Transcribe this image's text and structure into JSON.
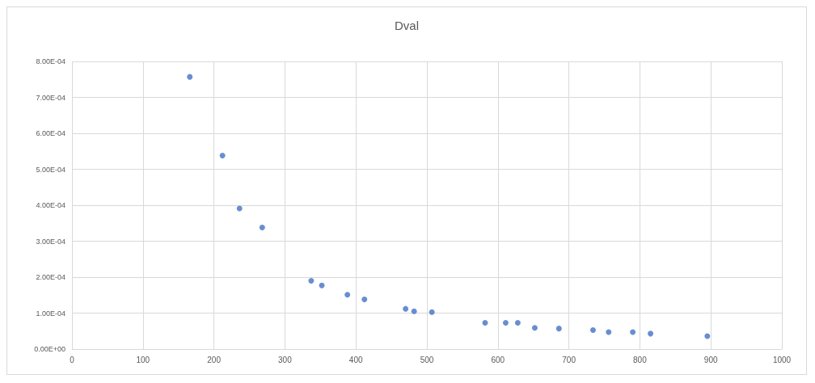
{
  "chart_data": {
    "type": "scatter",
    "title": "Dval",
    "x": [
      166,
      212,
      236,
      268,
      337,
      352,
      388,
      412,
      470,
      482,
      507,
      582,
      611,
      628,
      652,
      686,
      734,
      756,
      790,
      815,
      895
    ],
    "values": [
      0.000757,
      0.000538,
      0.000391,
      0.000338,
      0.00019,
      0.000177,
      0.000151,
      0.000138,
      0.000112,
      0.000105,
      0.000103,
      7.3e-05,
      7.3e-05,
      7.3e-05,
      5.9e-05,
      5.7e-05,
      5.3e-05,
      4.7e-05,
      4.7e-05,
      4.3e-05,
      3.6e-05
    ],
    "color": "#4472c4",
    "marker": "circle",
    "xlim": [
      0,
      1000
    ],
    "xticks": [
      0,
      100,
      200,
      300,
      400,
      500,
      600,
      700,
      800,
      900,
      1000
    ],
    "ylim": [
      0,
      0.0008
    ],
    "yticks": [
      {
        "value": 0,
        "label": "0.00E+00"
      },
      {
        "value": 0.0001,
        "label": "1.00E-04"
      },
      {
        "value": 0.0002,
        "label": "2.00E-04"
      },
      {
        "value": 0.0003,
        "label": "3.00E-04"
      },
      {
        "value": 0.0004,
        "label": "4.00E-04"
      },
      {
        "value": 0.0005,
        "label": "5.00E-04"
      },
      {
        "value": 0.0006,
        "label": "6.00E-04"
      },
      {
        "value": 0.0007,
        "label": "7.00E-04"
      },
      {
        "value": 0.0008,
        "label": "8.00E-04"
      }
    ],
    "grid": true
  }
}
